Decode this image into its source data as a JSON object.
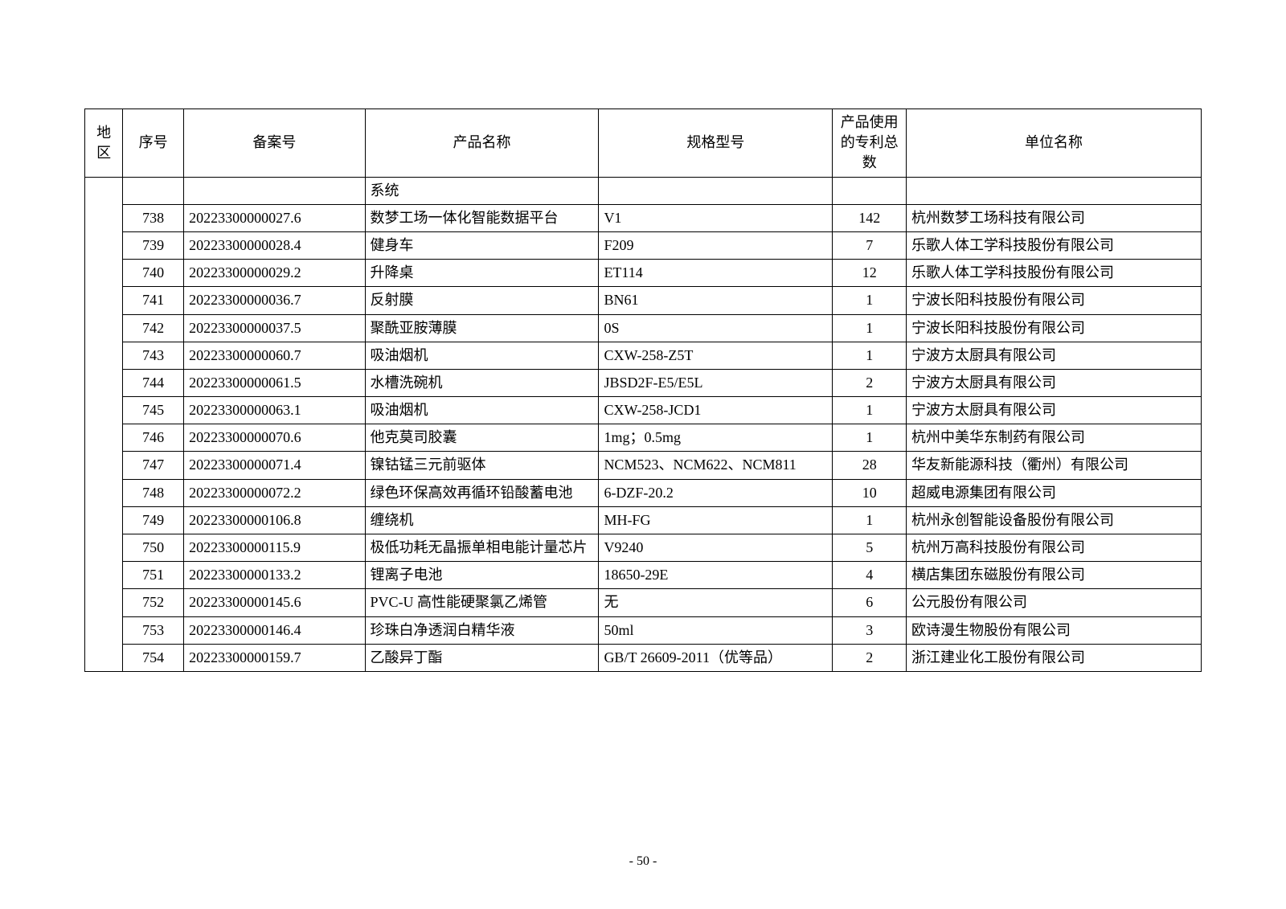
{
  "table": {
    "headers": {
      "region": "地区",
      "seq": "序号",
      "filing": "备案号",
      "product": "产品名称",
      "spec": "规格型号",
      "patent": "产品使用的专利总数",
      "company": "单位名称"
    },
    "continuation_row": {
      "product": "系统"
    },
    "rows": [
      {
        "seq": "738",
        "filing": "20223300000027.6",
        "product": "数梦工场一体化智能数据平台",
        "spec": "V1",
        "patent": "142",
        "company": "杭州数梦工场科技有限公司"
      },
      {
        "seq": "739",
        "filing": "20223300000028.4",
        "product": "健身车",
        "spec": "F209",
        "patent": "7",
        "company": "乐歌人体工学科技股份有限公司"
      },
      {
        "seq": "740",
        "filing": "20223300000029.2",
        "product": "升降桌",
        "spec": "ET114",
        "patent": "12",
        "company": "乐歌人体工学科技股份有限公司"
      },
      {
        "seq": "741",
        "filing": "20223300000036.7",
        "product": "反射膜",
        "spec": "BN61",
        "patent": "1",
        "company": "宁波长阳科技股份有限公司"
      },
      {
        "seq": "742",
        "filing": "20223300000037.5",
        "product": "聚酰亚胺薄膜",
        "spec": "0S",
        "patent": "1",
        "company": "宁波长阳科技股份有限公司"
      },
      {
        "seq": "743",
        "filing": "20223300000060.7",
        "product": "吸油烟机",
        "spec": "CXW-258-Z5T",
        "patent": "1",
        "company": "宁波方太厨具有限公司"
      },
      {
        "seq": "744",
        "filing": "20223300000061.5",
        "product": "水槽洗碗机",
        "spec": "JBSD2F-E5/E5L",
        "patent": "2",
        "company": "宁波方太厨具有限公司"
      },
      {
        "seq": "745",
        "filing": "20223300000063.1",
        "product": "吸油烟机",
        "spec": "CXW-258-JCD1",
        "patent": "1",
        "company": "宁波方太厨具有限公司"
      },
      {
        "seq": "746",
        "filing": "20223300000070.6",
        "product": "他克莫司胶囊",
        "spec": "1mg；0.5mg",
        "patent": "1",
        "company": "杭州中美华东制药有限公司"
      },
      {
        "seq": "747",
        "filing": "20223300000071.4",
        "product": "镍钴锰三元前驱体",
        "spec": "NCM523、NCM622、NCM811",
        "patent": "28",
        "company": "华友新能源科技（衢州）有限公司"
      },
      {
        "seq": "748",
        "filing": "20223300000072.2",
        "product": "绿色环保高效再循环铅酸蓄电池",
        "spec": "6-DZF-20.2",
        "patent": "10",
        "company": "超威电源集团有限公司"
      },
      {
        "seq": "749",
        "filing": "20223300000106.8",
        "product": "缠绕机",
        "spec": "MH-FG",
        "patent": "1",
        "company": "杭州永创智能设备股份有限公司"
      },
      {
        "seq": "750",
        "filing": "20223300000115.9",
        "product": "极低功耗无晶振单相电能计量芯片",
        "spec": "V9240",
        "patent": "5",
        "company": "杭州万高科技股份有限公司"
      },
      {
        "seq": "751",
        "filing": "20223300000133.2",
        "product": "锂离子电池",
        "spec": "18650-29E",
        "patent": "4",
        "company": "横店集团东磁股份有限公司"
      },
      {
        "seq": "752",
        "filing": "20223300000145.6",
        "product": "PVC-U 高性能硬聚氯乙烯管",
        "spec": "无",
        "patent": "6",
        "company": "公元股份有限公司"
      },
      {
        "seq": "753",
        "filing": "20223300000146.4",
        "product": "珍珠白净透润白精华液",
        "spec": "50ml",
        "patent": "3",
        "company": "欧诗漫生物股份有限公司"
      },
      {
        "seq": "754",
        "filing": "20223300000159.7",
        "product": "乙酸异丁酯",
        "spec": "GB/T 26609-2011（优等品）",
        "patent": "2",
        "company": "浙江建业化工股份有限公司"
      }
    ]
  },
  "page_number": "- 50 -"
}
